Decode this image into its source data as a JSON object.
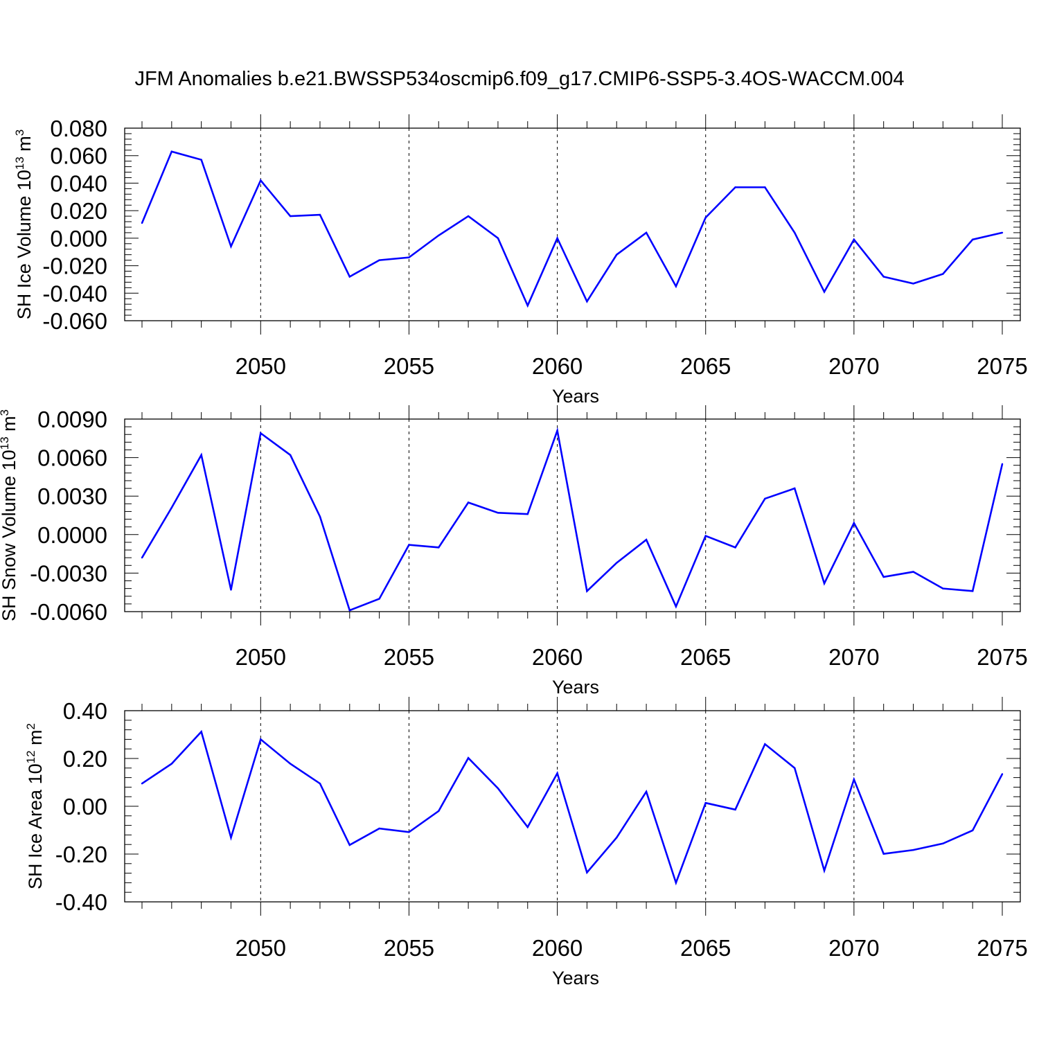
{
  "figure_title": "JFM Anomalies b.e21.BWSSP534oscmip6.f09_g17.CMIP6-SSP5-3.4OS-WACCM.004",
  "colors": {
    "line": "#0000ff",
    "frame": "#000000",
    "grid": "#000000"
  },
  "chart_data": [
    {
      "type": "line",
      "xlabel": "Years",
      "ylabel": "SH Ice Volume 10",
      "ylabel_exponent": "13",
      "ylabel_unit": "m",
      "ylabel_unit_exponent": "3",
      "xlim": [
        2046,
        2075
      ],
      "ylim": [
        -0.06,
        0.08
      ],
      "x_ticks": [
        "2050",
        "2055",
        "2060",
        "2065",
        "2070",
        "2075"
      ],
      "y_ticks": [
        "0.080",
        "0.060",
        "0.040",
        "0.020",
        "0.000",
        "-0.020",
        "-0.040",
        "-0.060"
      ],
      "grid": "vertical dashed at labeled years",
      "x": [
        2046,
        2047,
        2048,
        2049,
        2050,
        2051,
        2052,
        2053,
        2054,
        2055,
        2056,
        2057,
        2058,
        2059,
        2060,
        2061,
        2062,
        2063,
        2064,
        2065,
        2066,
        2067,
        2068,
        2069,
        2070,
        2071,
        2072,
        2073,
        2074,
        2075
      ],
      "values": [
        0.011,
        0.063,
        0.057,
        -0.006,
        0.042,
        0.016,
        0.017,
        -0.028,
        -0.016,
        -0.014,
        0.002,
        0.016,
        0.0,
        -0.049,
        0.0,
        -0.046,
        -0.012,
        0.004,
        -0.035,
        0.015,
        0.037,
        0.037,
        0.004,
        -0.039,
        -0.001,
        -0.028,
        -0.033,
        -0.026,
        -0.001,
        0.004
      ]
    },
    {
      "type": "line",
      "xlabel": "Years",
      "ylabel": "SH Snow Volume 10",
      "ylabel_exponent": "13",
      "ylabel_unit": "m",
      "ylabel_unit_exponent": "3",
      "xlim": [
        2046,
        2075
      ],
      "ylim": [
        -0.006,
        0.009
      ],
      "x_ticks": [
        "2050",
        "2055",
        "2060",
        "2065",
        "2070",
        "2075"
      ],
      "y_ticks": [
        "0.0090",
        "0.0060",
        "0.0030",
        "0.0000",
        "-0.0030",
        "-0.0060"
      ],
      "grid": "vertical dashed at labeled years",
      "x": [
        2046,
        2047,
        2048,
        2049,
        2050,
        2051,
        2052,
        2053,
        2054,
        2055,
        2056,
        2057,
        2058,
        2059,
        2060,
        2061,
        2062,
        2063,
        2064,
        2065,
        2066,
        2067,
        2068,
        2069,
        2070,
        2071,
        2072,
        2073,
        2074,
        2075
      ],
      "values": [
        -0.0018,
        0.0021,
        0.0062,
        -0.0043,
        0.0079,
        0.0062,
        0.0014,
        -0.0059,
        -0.005,
        -0.0008,
        -0.001,
        0.0025,
        0.0017,
        0.0016,
        0.0081,
        -0.0044,
        -0.0022,
        -0.0004,
        -0.0056,
        -0.0001,
        -0.001,
        0.0028,
        0.0036,
        -0.0038,
        0.0009,
        -0.0033,
        -0.0029,
        -0.0042,
        -0.0044,
        0.0055
      ]
    },
    {
      "type": "line",
      "xlabel": "Years",
      "ylabel": "SH Ice Area 10",
      "ylabel_exponent": "12",
      "ylabel_unit": "m",
      "ylabel_unit_exponent": "2",
      "xlim": [
        2046,
        2075
      ],
      "ylim": [
        -0.4,
        0.4
      ],
      "x_ticks": [
        "2050",
        "2055",
        "2060",
        "2065",
        "2070",
        "2075"
      ],
      "y_ticks": [
        "0.40",
        "0.20",
        "0.00",
        "-0.20",
        "-0.40"
      ],
      "grid": "vertical dashed at labeled years",
      "x": [
        2046,
        2047,
        2048,
        2049,
        2050,
        2051,
        2052,
        2053,
        2054,
        2055,
        2056,
        2057,
        2058,
        2059,
        2060,
        2061,
        2062,
        2063,
        2064,
        2065,
        2066,
        2067,
        2068,
        2069,
        2070,
        2071,
        2072,
        2073,
        2074,
        2075
      ],
      "values": [
        0.095,
        0.178,
        0.312,
        -0.131,
        0.28,
        0.178,
        0.095,
        -0.162,
        -0.093,
        -0.108,
        -0.02,
        0.202,
        0.075,
        -0.087,
        0.138,
        -0.277,
        -0.131,
        0.061,
        -0.32,
        0.014,
        -0.014,
        0.26,
        0.16,
        -0.269,
        0.112,
        -0.199,
        -0.183,
        -0.156,
        -0.101,
        0.135
      ]
    }
  ]
}
